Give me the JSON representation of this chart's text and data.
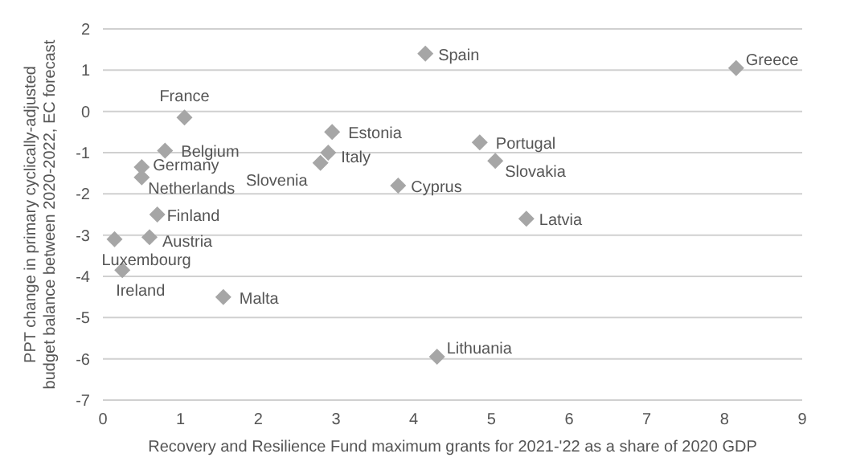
{
  "chart_data": {
    "type": "scatter",
    "xlabel": "Recovery and Resilience Fund maximum grants for 2021-'22 as a share of 2020 GDP",
    "ylabel": "PPT change in primary cyclically-adjusted budget balance between 2020-2022, EC forecast",
    "x": [
      4.15,
      8.15,
      1.05,
      2.95,
      0.8,
      2.9,
      2.8,
      0.5,
      0.5,
      4.85,
      5.05,
      3.8,
      0.7,
      5.45,
      0.15,
      0.6,
      0.25,
      1.55,
      4.3
    ],
    "series": [
      {
        "color": "#a6a6a6",
        "values": [
          1.4,
          1.05,
          -0.15,
          -0.5,
          -0.95,
          -1.0,
          -1.25,
          -1.35,
          -1.6,
          -0.75,
          -1.2,
          -1.8,
          -2.5,
          -2.6,
          -3.1,
          -3.05,
          -3.85,
          -4.5,
          -5.95
        ]
      }
    ],
    "annotations": [
      {
        "text": "Spain",
        "x": 4.15,
        "y": 1.4
      },
      {
        "text": "Greece",
        "x": 8.15,
        "y": 1.05
      },
      {
        "text": "France",
        "x": 1.05,
        "y": -0.15
      },
      {
        "text": "Estonia",
        "x": 2.95,
        "y": -0.5
      },
      {
        "text": "Belgium",
        "x": 0.8,
        "y": -0.95
      },
      {
        "text": "Italy",
        "x": 2.9,
        "y": -1.0
      },
      {
        "text": "Slovenia",
        "x": 2.8,
        "y": -1.25
      },
      {
        "text": "Germany",
        "x": 0.5,
        "y": -1.35
      },
      {
        "text": "Netherlands",
        "x": 0.5,
        "y": -1.6
      },
      {
        "text": "Portugal",
        "x": 4.85,
        "y": -0.75
      },
      {
        "text": "Slovakia",
        "x": 5.05,
        "y": -1.2
      },
      {
        "text": "Cyprus",
        "x": 3.8,
        "y": -1.8
      },
      {
        "text": "Finland",
        "x": 0.7,
        "y": -2.5
      },
      {
        "text": "Latvia",
        "x": 5.45,
        "y": -2.6
      },
      {
        "text": "Luxembourg",
        "x": 0.15,
        "y": -3.1
      },
      {
        "text": "Austria",
        "x": 0.6,
        "y": -3.05
      },
      {
        "text": "Ireland",
        "x": 0.25,
        "y": -3.85
      },
      {
        "text": "Malta",
        "x": 1.55,
        "y": -4.5
      },
      {
        "text": "Lithuania",
        "x": 4.3,
        "y": -5.95
      }
    ],
    "xlim": [
      0,
      9
    ],
    "xticks": [
      0,
      1,
      2,
      3,
      4,
      5,
      6,
      7,
      8,
      9
    ],
    "ylim": [
      -7,
      2
    ],
    "yticks": [
      -7,
      -6,
      -5,
      -4,
      -3,
      -2,
      -1,
      0,
      1,
      2
    ],
    "grid": "y",
    "marker": "diamond"
  }
}
